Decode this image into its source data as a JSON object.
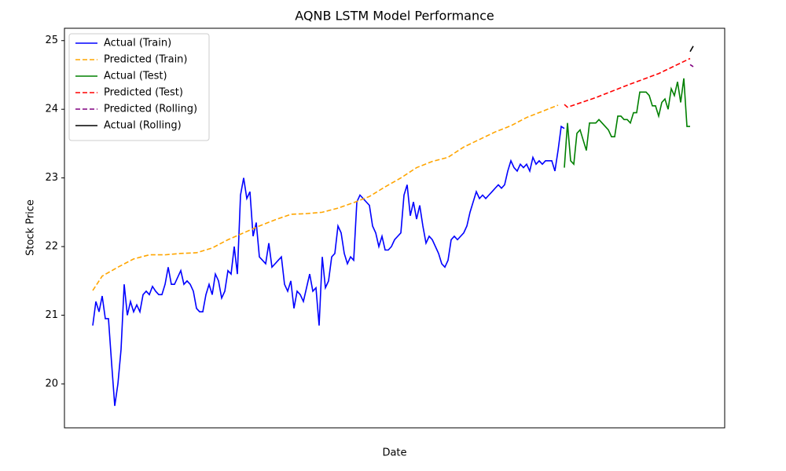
{
  "chart_data": {
    "type": "line",
    "title": "AQNB LSTM Model Performance",
    "x_label": "Date",
    "y_label": "Stock Price",
    "xlim": [
      -9,
      201
    ],
    "ylim": [
      19.36,
      25.18
    ],
    "yticks": [
      20,
      21,
      22,
      23,
      24,
      25
    ],
    "grid": false,
    "legend": "upper left",
    "series": [
      {
        "name": "Actual (Train)",
        "color": "#0000ff",
        "style": "solid",
        "x": [
          0,
          1,
          2,
          3,
          4,
          5,
          6,
          7,
          8,
          9,
          10,
          11,
          12,
          13,
          14,
          15,
          16,
          17,
          18,
          19,
          20,
          21,
          22,
          23,
          24,
          25,
          26,
          27,
          28,
          29,
          30,
          31,
          32,
          33,
          34,
          35,
          36,
          37,
          38,
          39,
          40,
          41,
          42,
          43,
          44,
          45,
          46,
          47,
          48,
          49,
          50,
          51,
          52,
          53,
          54,
          55,
          56,
          57,
          58,
          59,
          60,
          61,
          62,
          63,
          64,
          65,
          66,
          67,
          68,
          69,
          70,
          71,
          72,
          73,
          74,
          75,
          76,
          77,
          78,
          79,
          80,
          81,
          82,
          83,
          84,
          85,
          86,
          87,
          88,
          89,
          90,
          91,
          92,
          93,
          94,
          95,
          96,
          97,
          98,
          99,
          100,
          101,
          102,
          103,
          104,
          105,
          106,
          107,
          108,
          109,
          110,
          111,
          112,
          113,
          114,
          115,
          116,
          117,
          118,
          119,
          120,
          121,
          122,
          123,
          124,
          125,
          126,
          127,
          128,
          129,
          130,
          131,
          132,
          133,
          134,
          135,
          136,
          137,
          138,
          139,
          140,
          141,
          142,
          143,
          144,
          145,
          146,
          147,
          148,
          149,
          150
        ],
        "values": [
          20.85,
          21.2,
          21.05,
          21.28,
          20.95,
          20.95,
          20.3,
          19.68,
          20.0,
          20.5,
          21.45,
          21.0,
          21.2,
          21.05,
          21.15,
          21.05,
          21.3,
          21.35,
          21.3,
          21.42,
          21.35,
          21.3,
          21.3,
          21.45,
          21.7,
          21.45,
          21.45,
          21.55,
          21.65,
          21.45,
          21.5,
          21.45,
          21.35,
          21.1,
          21.05,
          21.05,
          21.3,
          21.45,
          21.3,
          21.6,
          21.5,
          21.25,
          21.35,
          21.65,
          21.6,
          22.0,
          21.6,
          22.75,
          23.0,
          22.7,
          22.8,
          22.15,
          22.35,
          21.85,
          21.8,
          21.75,
          22.05,
          21.7,
          21.75,
          21.8,
          21.85,
          21.45,
          21.35,
          21.5,
          21.1,
          21.35,
          21.3,
          21.2,
          21.4,
          21.6,
          21.35,
          21.4,
          20.85,
          21.85,
          21.4,
          21.5,
          21.85,
          21.9,
          22.3,
          22.2,
          21.9,
          21.75,
          21.85,
          21.8,
          22.65,
          22.75,
          22.7,
          22.65,
          22.6,
          22.3,
          22.2,
          22.0,
          22.15,
          21.95,
          21.95,
          22.0,
          22.1,
          22.15,
          22.2,
          22.75,
          22.9,
          22.45,
          22.65,
          22.4,
          22.6,
          22.3,
          22.05,
          22.15,
          22.1,
          22.0,
          21.9,
          21.75,
          21.7,
          21.8,
          22.1,
          22.15,
          22.1,
          22.15,
          22.2,
          22.3,
          22.5,
          22.65,
          22.8,
          22.7,
          22.75,
          22.7,
          22.75,
          22.8,
          22.85,
          22.9,
          22.85,
          22.9,
          23.1,
          23.25,
          23.15,
          23.1,
          23.2,
          23.15,
          23.2,
          23.1,
          23.3,
          23.2,
          23.25,
          23.2,
          23.25,
          23.25,
          23.25,
          23.1,
          23.4,
          23.75,
          23.72
        ]
      },
      {
        "name": "Predicted (Train)",
        "color": "#ffa500",
        "style": "dashed",
        "x": [
          0,
          3,
          8,
          13,
          18,
          23,
          28,
          33,
          38,
          43,
          48,
          53,
          58,
          63,
          68,
          73,
          78,
          83,
          88,
          93,
          98,
          103,
          108,
          113,
          118,
          123,
          128,
          133,
          138,
          143,
          148
        ],
        "values": [
          21.36,
          21.57,
          21.7,
          21.82,
          21.88,
          21.88,
          21.9,
          21.91,
          21.98,
          22.1,
          22.2,
          22.3,
          22.39,
          22.47,
          22.48,
          22.5,
          22.56,
          22.64,
          22.73,
          22.87,
          23.0,
          23.15,
          23.24,
          23.3,
          23.45,
          23.56,
          23.67,
          23.76,
          23.88,
          23.97,
          24.06
        ]
      },
      {
        "name": "Actual (Test)",
        "color": "#008000",
        "style": "solid",
        "x": [
          150,
          151,
          152,
          153,
          154,
          155,
          156,
          157,
          158,
          159,
          160,
          161,
          162,
          163,
          164,
          165,
          166,
          167,
          168,
          169,
          170,
          171,
          172,
          173,
          174,
          175,
          176,
          177,
          178,
          179,
          180,
          181,
          182,
          183,
          184,
          185,
          186,
          187,
          188,
          189,
          190
        ],
        "values": [
          23.15,
          23.8,
          23.25,
          23.2,
          23.65,
          23.7,
          23.55,
          23.4,
          23.8,
          23.8,
          23.8,
          23.85,
          23.8,
          23.75,
          23.7,
          23.6,
          23.6,
          23.9,
          23.9,
          23.85,
          23.85,
          23.8,
          23.95,
          23.95,
          24.25,
          24.25,
          24.25,
          24.2,
          24.05,
          24.05,
          23.9,
          24.1,
          24.15,
          24.0,
          24.3,
          24.2,
          24.4,
          24.1,
          24.45,
          23.75,
          23.75
        ]
      },
      {
        "name": "Predicted (Test)",
        "color": "#ff0000",
        "style": "dashed",
        "x": [
          150,
          151,
          160,
          170,
          180,
          190
        ],
        "values": [
          24.07,
          24.03,
          24.17,
          24.35,
          24.52,
          24.74
        ]
      },
      {
        "name": "Predicted (Rolling)",
        "color": "#800080",
        "style": "dashed",
        "x": [
          190,
          191
        ],
        "values": [
          24.65,
          24.62
        ]
      },
      {
        "name": "Actual (Rolling)",
        "color": "#000000",
        "style": "solid",
        "x": [
          190,
          191
        ],
        "values": [
          24.84,
          24.92
        ]
      }
    ]
  }
}
